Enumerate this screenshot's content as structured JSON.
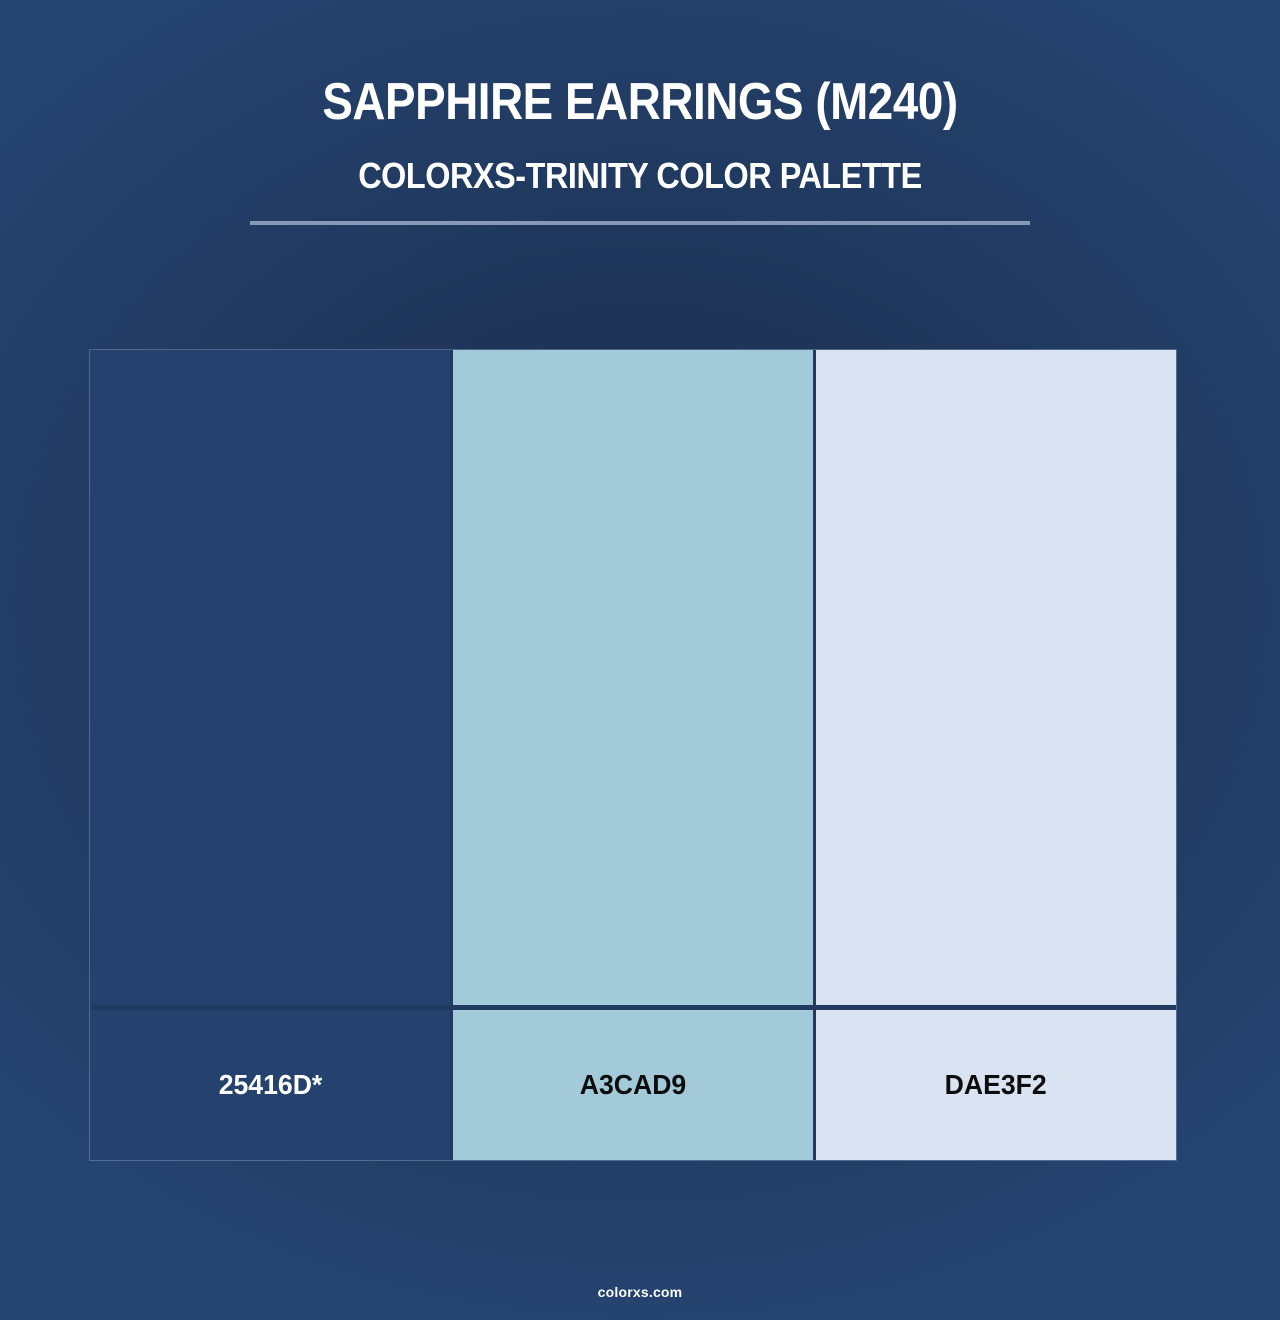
{
  "page": {
    "title": "SAPPHIRE EARRINGS (M240)",
    "subtitle": "COLORXS-TRINITY COLOR PALETTE",
    "footer": "colorxs.com"
  },
  "palette": {
    "name": "Colorxs-Trinity",
    "swatches": [
      {
        "label": "25416D*",
        "color": "#25416D",
        "label_color": "#ffffff"
      },
      {
        "label": "A3CAD9",
        "color": "#A3CAD9",
        "label_color": "#0d0d0d"
      },
      {
        "label": "DAE3F2",
        "color": "#DAE3F2",
        "label_color": "#0d0d0d"
      }
    ]
  },
  "colors": {
    "bg_center": "#1e3457",
    "bg_edge": "#264572",
    "divider": "#aab9d1",
    "grid_border": "#203a62",
    "grid_outline": "rgba(170,190,220,0.35)",
    "title_color": "#ffffff"
  }
}
